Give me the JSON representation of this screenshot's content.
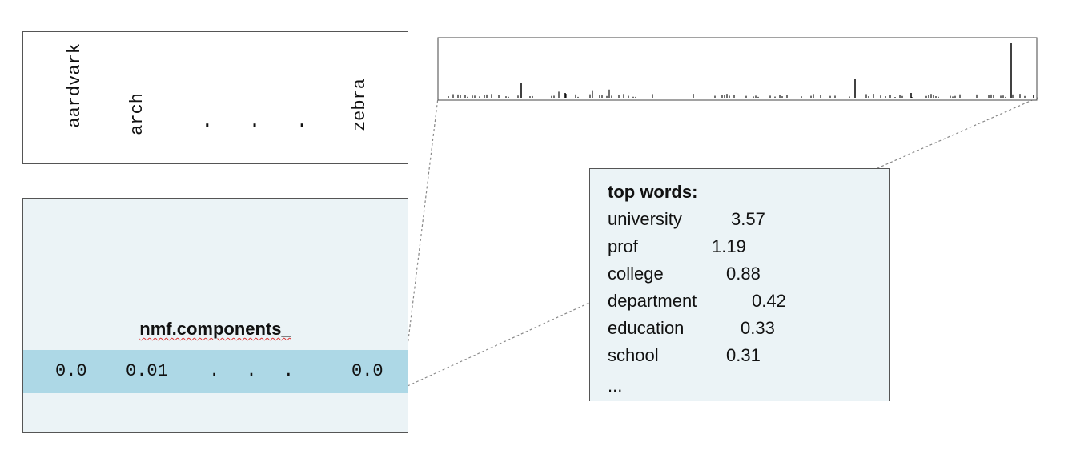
{
  "vocabulary": {
    "words": [
      "aardvark",
      "arch",
      "zebra"
    ],
    "ellipsis": ". . ."
  },
  "components": {
    "title": "nmf.components_",
    "row_values": [
      "0.0",
      "0.01",
      "0.0"
    ],
    "ellipsis": ". . ."
  },
  "top_words": {
    "title": "top words:",
    "items": [
      {
        "word": "university",
        "value": "3.57"
      },
      {
        "word": "prof",
        "value": "1.19"
      },
      {
        "word": "college",
        "value": "0.88"
      },
      {
        "word": "department",
        "value": "0.42"
      },
      {
        "word": "education",
        "value": "0.33"
      },
      {
        "word": "school",
        "value": "0.31"
      }
    ],
    "more": "..."
  },
  "colors": {
    "row_highlight": "#add8e6",
    "panel_background": "#ebf3f6",
    "connector": "#888888"
  }
}
